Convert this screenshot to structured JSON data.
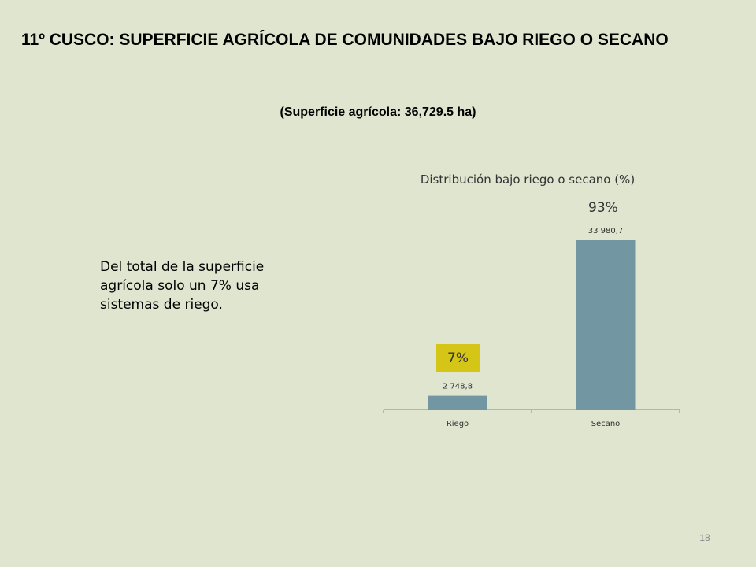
{
  "slide": {
    "title": "11º CUSCO:  SUPERFICIE AGRÍCOLA DE COMUNIDADES BAJO RIEGO O SECANO",
    "subtitle": "(Superficie agrícola: 36,729.5 ha)",
    "note": "Del total de la superficie agrícola solo un 7% usa sistemas de riego.",
    "page_number": "18"
  },
  "chart_data": {
    "type": "bar",
    "title": "Distribución bajo riego o secano (%)",
    "categories": [
      "Riego",
      "Secano"
    ],
    "values": [
      2748.8,
      33980.7
    ],
    "value_labels": [
      "2 748,8",
      "33 980,7"
    ],
    "percent_labels": [
      "7%",
      "93%"
    ],
    "ylim": [
      0,
      38000
    ],
    "grid": false,
    "legend": "none",
    "bar_color": "#7296a2",
    "highlight_color": "#d4c516"
  }
}
